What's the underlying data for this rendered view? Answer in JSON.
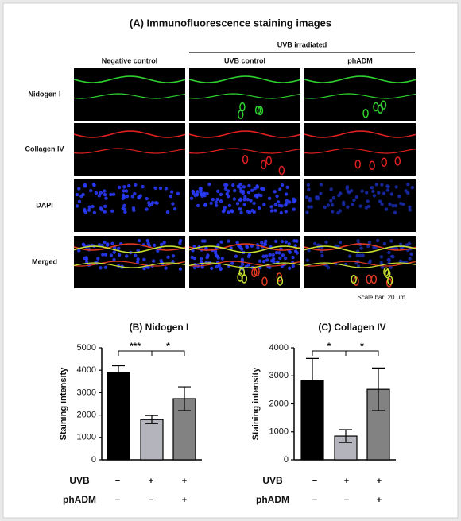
{
  "figure": {
    "title": "(A) Immunofluorescence staining images",
    "group_label": "UVB irradiated",
    "columns": [
      "Negative control",
      "UVB control",
      "phADM"
    ],
    "rows": [
      "Nidogen I",
      "Collagen IV",
      "DAPI",
      "Merged"
    ],
    "scale_note": "Scale bar: 20 μm"
  },
  "chart_data": [
    {
      "type": "bar",
      "title": "(B) Nidogen I",
      "ylabel": "Staining intensity",
      "values": [
        3900,
        1800,
        2730
      ],
      "errors": [
        300,
        180,
        530
      ],
      "colors": [
        "#000000",
        "#b4b4bc",
        "#828282"
      ],
      "ylim": [
        0,
        5000
      ],
      "yticks": [
        0,
        1000,
        2000,
        3000,
        4000,
        5000
      ],
      "annotations": [
        "***",
        "*"
      ],
      "treatment_rows": [
        {
          "name": "UVB",
          "signs": [
            "−",
            "+",
            "+"
          ]
        },
        {
          "name": "phADM",
          "signs": [
            "−",
            "−",
            "+"
          ]
        }
      ]
    },
    {
      "type": "bar",
      "title": "(C) Collagen IV",
      "ylabel": "Staining intensity",
      "values": [
        2820,
        850,
        2520
      ],
      "errors": [
        800,
        230,
        760
      ],
      "colors": [
        "#000000",
        "#b4b4bc",
        "#828282"
      ],
      "ylim": [
        0,
        4000
      ],
      "yticks": [
        0,
        1000,
        2000,
        3000,
        4000
      ],
      "annotations": [
        "*",
        "*"
      ],
      "treatment_rows": [
        {
          "name": "UVB",
          "signs": [
            "−",
            "+",
            "+"
          ]
        },
        {
          "name": "phADM",
          "signs": [
            "−",
            "−",
            "+"
          ]
        }
      ]
    }
  ]
}
